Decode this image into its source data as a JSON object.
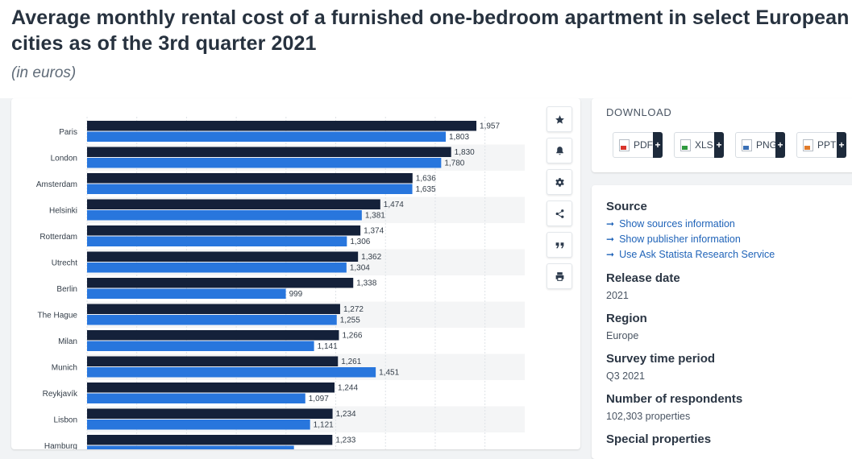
{
  "header": {
    "title": "Average monthly rental cost of a furnished one-bedroom apartment in select European cities as of the 3rd quarter 2021",
    "subtitle": "(in euros)"
  },
  "actions": [
    {
      "name": "favorite-star-icon"
    },
    {
      "name": "notification-bell-icon"
    },
    {
      "name": "settings-gear-icon"
    },
    {
      "name": "share-icon"
    },
    {
      "name": "cite-quote-icon"
    },
    {
      "name": "print-icon"
    }
  ],
  "download": {
    "label": "DOWNLOAD",
    "buttons": [
      {
        "label": "PDF",
        "plus": "+",
        "icon": "pdf-file-icon"
      },
      {
        "label": "XLS",
        "plus": "+",
        "icon": "xls-file-icon"
      },
      {
        "label": "PNG",
        "plus": "+",
        "icon": "png-file-icon"
      },
      {
        "label": "PPT",
        "plus": "+",
        "icon": "ppt-file-icon"
      }
    ]
  },
  "info": {
    "source_heading": "Source",
    "links": [
      "Show sources information",
      "Show publisher information",
      "Use Ask Statista Research Service"
    ],
    "release_heading": "Release date",
    "release_value": "2021",
    "region_heading": "Region",
    "region_value": "Europe",
    "period_heading": "Survey time period",
    "period_value": "Q3 2021",
    "respondents_heading": "Number of respondents",
    "respondents_value": "102,303 properties",
    "special_heading": "Special properties"
  },
  "chart_data": {
    "type": "bar",
    "orientation": "horizontal",
    "categories": [
      "Paris",
      "London",
      "Amsterdam",
      "Helsinki",
      "Rotterdam",
      "Utrecht",
      "Berlin",
      "The Hague",
      "Milan",
      "Munich",
      "Reykjavík",
      "Lisbon",
      "Hamburg"
    ],
    "series": [
      {
        "values": [
          1957,
          1830,
          1636,
          1474,
          1374,
          1362,
          1338,
          1272,
          1266,
          1261,
          1244,
          1234,
          1233
        ],
        "color": "#14213a"
      },
      {
        "values": [
          1803,
          1780,
          1635,
          1381,
          1306,
          1304,
          999,
          1255,
          1141,
          1451,
          1097,
          1121,
          1040
        ],
        "color": "#2876dd"
      }
    ],
    "value_labels": [
      [
        "1,957",
        "1,830",
        "1,636",
        "1,474",
        "1,374",
        "1,362",
        "1,338",
        "1,272",
        "1,266",
        "1,261",
        "1,244",
        "1,234",
        "1,233"
      ],
      [
        "1,803",
        "1,780",
        "1,635",
        "1,381",
        "1,306",
        "1,304",
        "999",
        "1,255",
        "1,141",
        "1,451",
        "1,097",
        "1,121",
        ""
      ]
    ],
    "xlim": [
      0,
      2200
    ],
    "grid": true,
    "row_stripes": true
  }
}
